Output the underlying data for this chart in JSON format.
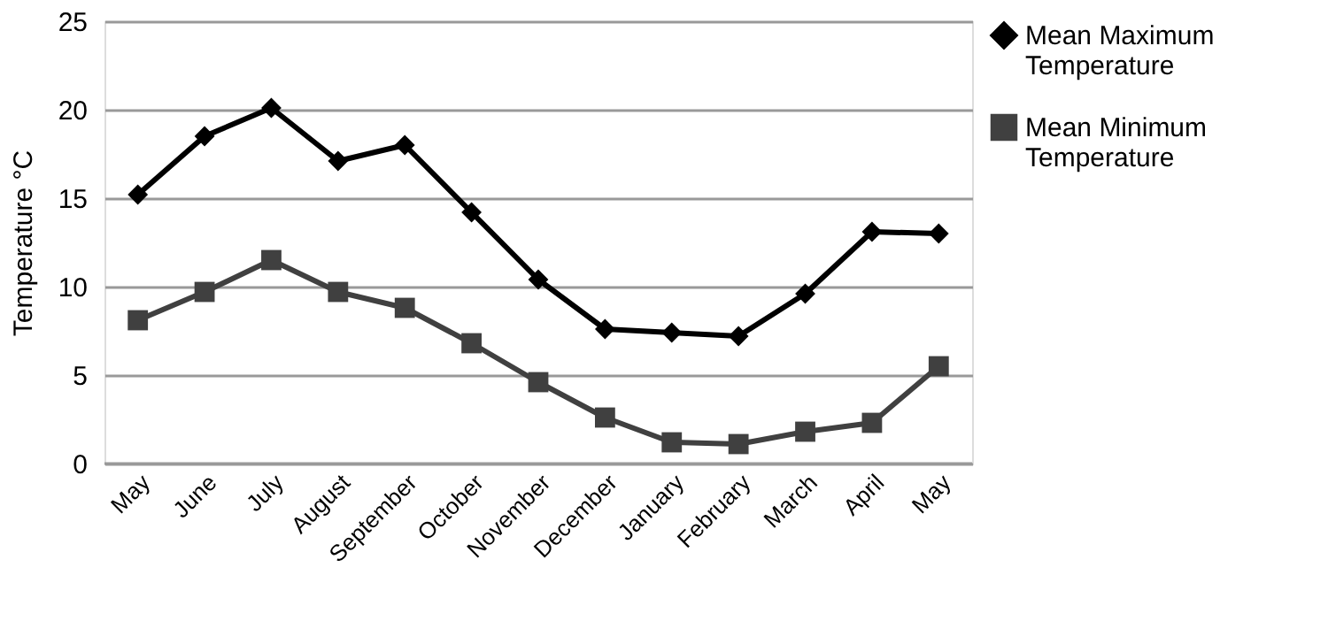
{
  "chart_data": {
    "type": "line",
    "ylabel": "Temperature °C",
    "categories": [
      "May",
      "June",
      "July",
      "August",
      "September",
      "October",
      "November",
      "December",
      "January",
      "February",
      "March",
      "April",
      "May"
    ],
    "series": [
      {
        "name": "Mean Maximum Temperature",
        "color": "#000000",
        "marker": "diamond",
        "values": [
          15.2,
          18.5,
          20.1,
          17.1,
          18.0,
          14.2,
          10.4,
          7.6,
          7.4,
          7.2,
          9.6,
          13.1,
          13.0
        ]
      },
      {
        "name": "Mean Minimum Temperature",
        "color": "#404040",
        "marker": "square",
        "values": [
          8.1,
          9.7,
          11.5,
          9.7,
          8.8,
          6.8,
          4.6,
          2.6,
          1.2,
          1.1,
          1.8,
          2.3,
          5.5
        ]
      }
    ],
    "ylim": [
      0,
      25
    ],
    "yticks": [
      0,
      5,
      10,
      15,
      20,
      25
    ],
    "grid": "y",
    "legend": "right",
    "line_style": "solid"
  }
}
